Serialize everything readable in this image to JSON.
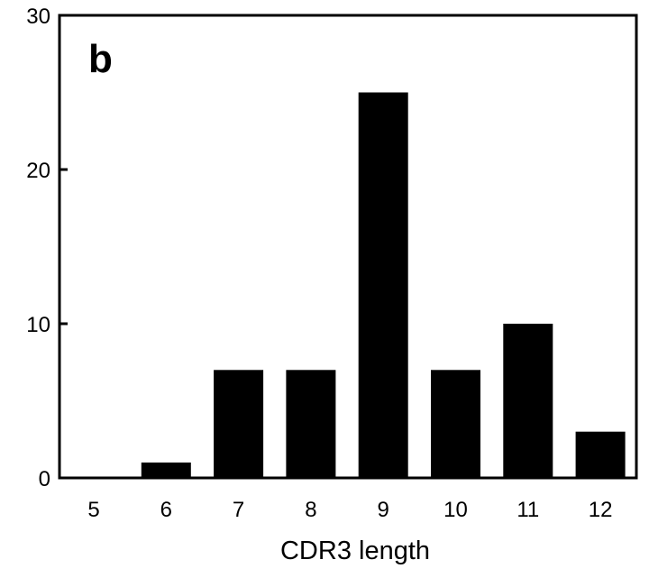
{
  "chart_data": {
    "type": "bar",
    "panel_label": "b",
    "categories": [
      "5",
      "6",
      "7",
      "8",
      "9",
      "10",
      "11",
      "12"
    ],
    "values": [
      0,
      1,
      7,
      7,
      25,
      7,
      10,
      3
    ],
    "xlabel": "CDR3 length",
    "ylabel": "",
    "ylim": [
      0,
      30
    ],
    "yticks": [
      "0",
      "10",
      "20",
      "30"
    ],
    "grid": false,
    "bar_color": "#000000"
  }
}
